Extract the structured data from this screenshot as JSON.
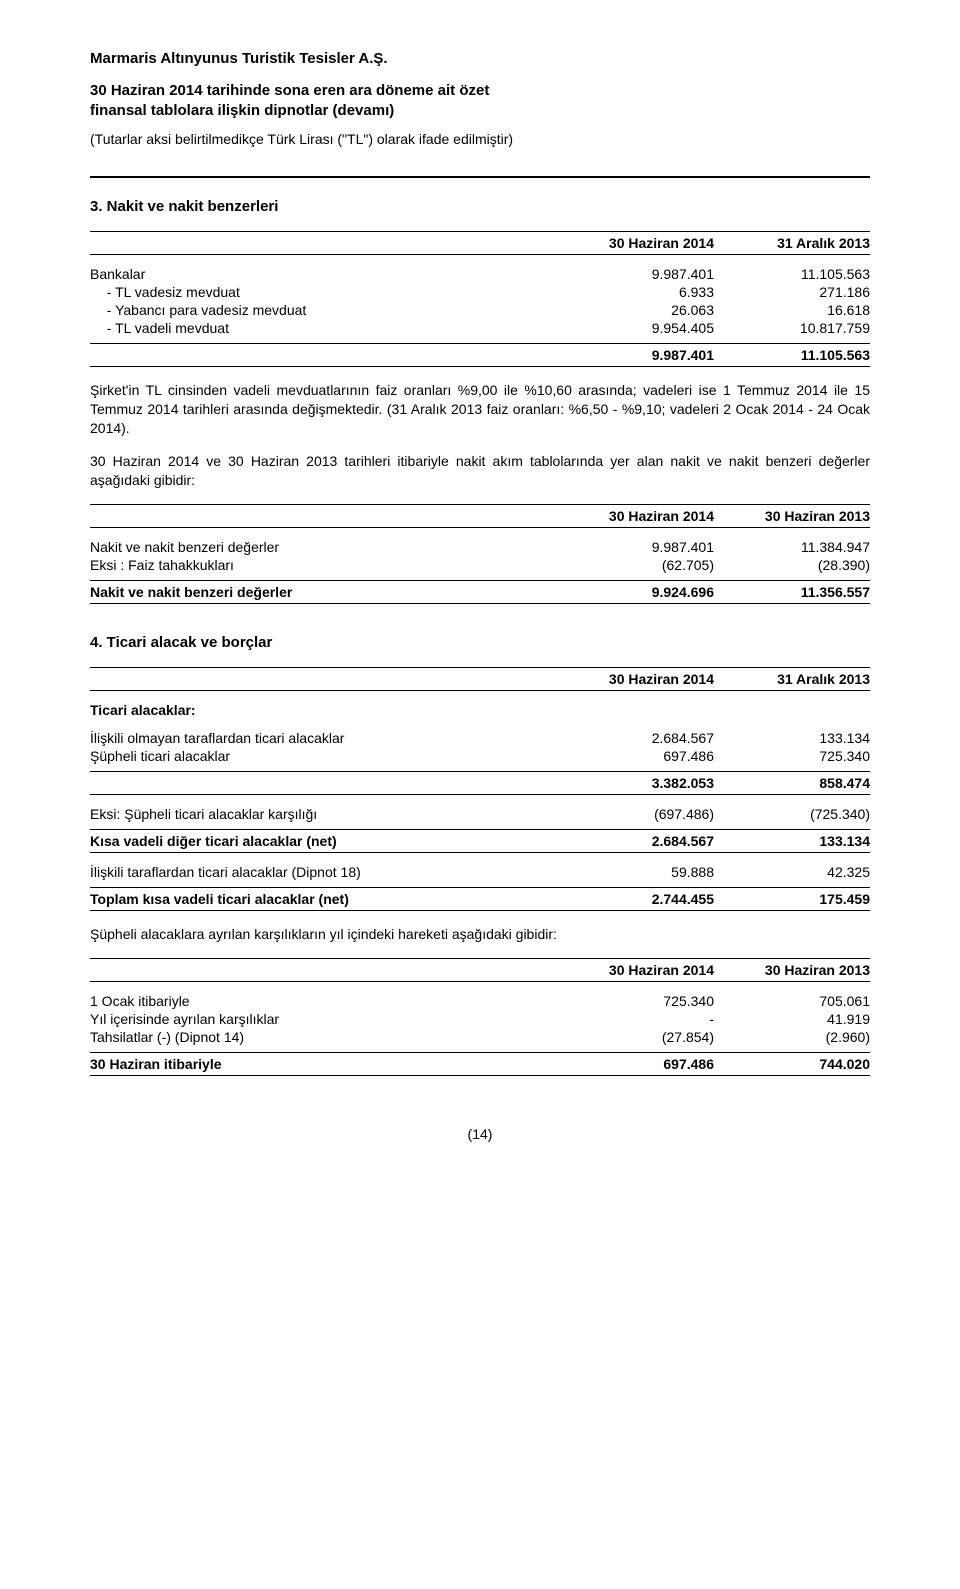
{
  "company": "Marmaris Altınyunus Turistik Tesisler A.Ş.",
  "docHeader": "30 Haziran 2014 tarihinde sona eren ara döneme ait özet\nfinansal tablolara ilişkin dipnotlar (devamı)",
  "docSubheader": "(Tutarlar aksi belirtilmedikçe Türk Lirası (\"TL\") olarak ifade edilmiştir)",
  "section3": {
    "title": "3.      Nakit ve nakit benzerleri",
    "colHeaders": [
      "30 Haziran 2014",
      "31 Aralık 2013"
    ],
    "rows": [
      {
        "label": "Bankalar",
        "v1": "9.987.401",
        "v2": "11.105.563"
      },
      {
        "label": "- TL vadesiz mevduat",
        "v1": "6.933",
        "v2": "271.186",
        "indent": true
      },
      {
        "label": "- Yabancı para vadesiz mevduat",
        "v1": "26.063",
        "v2": "16.618",
        "indent": true
      },
      {
        "label": "- TL vadeli mevduat",
        "v1": "9.954.405",
        "v2": "10.817.759",
        "indent": true
      }
    ],
    "totals": {
      "v1": "9.987.401",
      "v2": "11.105.563"
    },
    "para1": "Şirket'in TL cinsinden vadeli mevduatlarının faiz oranları %9,00 ile %10,60 arasında; vadeleri ise 1 Temmuz 2014 ile 15 Temmuz 2014 tarihleri arasında değişmektedir. (31 Aralık 2013 faiz oranları: %6,50 - %9,10; vadeleri 2 Ocak 2014 - 24 Ocak 2014).",
    "para2": "30 Haziran 2014 ve 30 Haziran 2013 tarihleri itibariyle nakit akım tablolarında yer alan nakit ve nakit benzeri değerler aşağıdaki gibidir:",
    "colHeaders2": [
      "30 Haziran 2014",
      "30 Haziran 2013"
    ],
    "rows2": [
      {
        "label": "Nakit ve nakit benzeri değerler",
        "v1": "9.987.401",
        "v2": "11.384.947"
      },
      {
        "label": "Eksi : Faiz tahakkukları",
        "v1": "(62.705)",
        "v2": "(28.390)"
      }
    ],
    "totals2": {
      "label": "Nakit ve nakit benzeri değerler",
      "v1": "9.924.696",
      "v2": "11.356.557"
    }
  },
  "section4": {
    "title": "4.      Ticari alacak ve borçlar",
    "colHeaders": [
      "30 Haziran 2014",
      "31 Aralık 2013"
    ],
    "subTitle": "Ticari alacaklar:",
    "rows": [
      {
        "label": "İlişkili olmayan taraflardan ticari alacaklar",
        "v1": "2.684.567",
        "v2": "133.134"
      },
      {
        "label": "Şüpheli ticari alacaklar",
        "v1": "697.486",
        "v2": "725.340"
      }
    ],
    "subtotal": {
      "v1": "3.382.053",
      "v2": "858.474"
    },
    "lessRow": {
      "label": "Eksi: Şüpheli ticari alacaklar karşılığı",
      "v1": "(697.486)",
      "v2": "(725.340)"
    },
    "net1": {
      "label": "Kısa vadeli diğer ticari alacaklar (net)",
      "v1": "2.684.567",
      "v2": "133.134"
    },
    "related": {
      "label": "İlişkili taraflardan ticari alacaklar (Dipnot 18)",
      "v1": "59.888",
      "v2": "42.325"
    },
    "grand": {
      "label": "Toplam kısa vadeli ticari alacaklar (net)",
      "v1": "2.744.455",
      "v2": "175.459"
    },
    "para": "Şüpheli alacaklara ayrılan karşılıkların yıl içindeki hareketi aşağıdaki gibidir:",
    "colHeaders2": [
      "30 Haziran 2014",
      "30 Haziran 2013"
    ],
    "rows2": [
      {
        "label": "1 Ocak itibariyle",
        "v1": "725.340",
        "v2": "705.061"
      },
      {
        "label": "Yıl içerisinde ayrılan karşılıklar",
        "v1": "-",
        "v2": "41.919"
      },
      {
        "label": "Tahsilatlar (-) (Dipnot 14)",
        "v1": "(27.854)",
        "v2": "(2.960)"
      }
    ],
    "end": {
      "label": "30 Haziran itibariyle",
      "v1": "697.486",
      "v2": "744.020"
    }
  },
  "pageNum": "(14)"
}
